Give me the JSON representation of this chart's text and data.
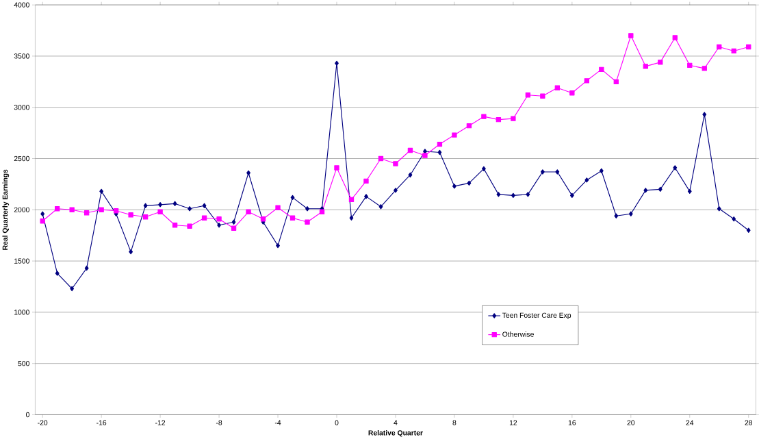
{
  "chart_data": {
    "type": "line",
    "xlabel": "Relative Quarter",
    "ylabel": "Real Quarterly Earnings",
    "x": [
      -20,
      -19,
      -18,
      -17,
      -16,
      -15,
      -14,
      -13,
      -12,
      -11,
      -10,
      -9,
      -8,
      -7,
      -6,
      -5,
      -4,
      -3,
      -2,
      -1,
      0,
      1,
      2,
      3,
      4,
      5,
      6,
      7,
      8,
      9,
      10,
      11,
      12,
      13,
      14,
      15,
      16,
      17,
      18,
      19,
      20,
      21,
      22,
      23,
      24,
      25,
      26,
      27,
      28
    ],
    "series": [
      {
        "name": "Teen Foster Care Exp",
        "color": "#000080",
        "marker": "diamond",
        "values": [
          1960,
          1380,
          1230,
          1430,
          2180,
          1960,
          1590,
          2040,
          2050,
          2060,
          2010,
          2040,
          1850,
          1880,
          2360,
          1880,
          1650,
          2120,
          2010,
          2010,
          3430,
          1920,
          2130,
          2030,
          2190,
          2340,
          2570,
          2560,
          2230,
          2260,
          2400,
          2150,
          2140,
          2150,
          2370,
          2370,
          2140,
          2290,
          2380,
          1940,
          1960,
          2190,
          2200,
          2410,
          2180,
          2930,
          2010,
          1910,
          1800
        ]
      },
      {
        "name": "Otherwise",
        "color": "#ff00ff",
        "marker": "square",
        "values": [
          1890,
          2010,
          2000,
          1970,
          2000,
          1990,
          1950,
          1930,
          1980,
          1850,
          1840,
          1920,
          1910,
          1820,
          1980,
          1910,
          2020,
          1920,
          1880,
          1980,
          2410,
          2100,
          2280,
          2500,
          2450,
          2580,
          2530,
          2640,
          2730,
          2820,
          2910,
          2880,
          2890,
          3120,
          3110,
          3190,
          3140,
          3260,
          3370,
          3250,
          3700,
          3400,
          3440,
          3680,
          3410,
          3380,
          3590,
          3550,
          3590
        ]
      }
    ],
    "xlim": [
      -20.5,
      28.5
    ],
    "xticks": [
      -20,
      -16,
      -12,
      -8,
      -4,
      0,
      4,
      8,
      12,
      16,
      20,
      24,
      28
    ],
    "ylim": [
      0,
      4000
    ],
    "yticks": [
      0,
      500,
      1000,
      1500,
      2000,
      2500,
      3000,
      3500,
      4000
    ],
    "grid": "y",
    "legend": "bottom right"
  }
}
